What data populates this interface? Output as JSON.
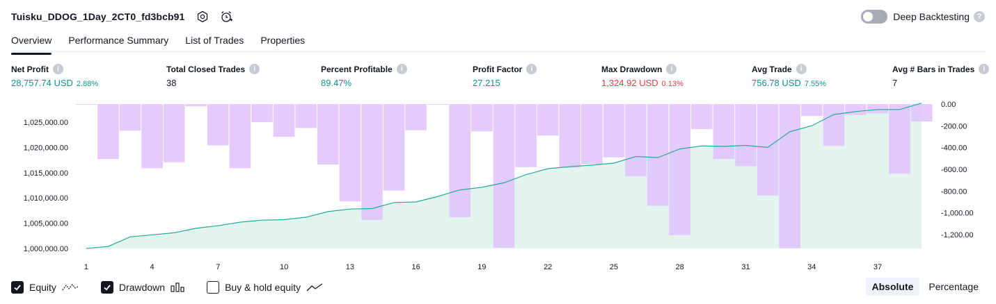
{
  "header": {
    "title": "Tuisku_DDOG_1Day_2CT0_fd3bcb91",
    "settings_icon": "gear-icon",
    "alert_icon": "alarm-clock-plus-icon"
  },
  "deep_backtesting": {
    "label": "Deep Backtesting",
    "enabled": false,
    "help": "?"
  },
  "tabs": [
    {
      "label": "Overview",
      "active": true
    },
    {
      "label": "Performance Summary",
      "active": false
    },
    {
      "label": "List of Trades",
      "active": false
    },
    {
      "label": "Properties",
      "active": false
    }
  ],
  "metrics": {
    "net_profit": {
      "label": "Net Profit",
      "value": "28,757.74 USD",
      "pct": "2.88%"
    },
    "total_closed_trades": {
      "label": "Total Closed Trades",
      "value": "38"
    },
    "percent_profitable": {
      "label": "Percent Profitable",
      "value": "89.47%"
    },
    "profit_factor": {
      "label": "Profit Factor",
      "value": "27.215"
    },
    "max_drawdown": {
      "label": "Max Drawdown",
      "value": "1,324.92 USD",
      "pct": "0.13%"
    },
    "avg_trade": {
      "label": "Avg Trade",
      "value": "756.78 USD",
      "pct": "7.55%"
    },
    "avg_bars": {
      "label": "Avg # Bars in Trades",
      "value": "7"
    },
    "info_glyph": "i"
  },
  "colors": {
    "equity_line": "#22ab94",
    "equity_fill": "#e3f4ef",
    "drawdown_bar": "#e1c2fd",
    "positive": "#089981",
    "negative": "#f23645"
  },
  "chart_data": {
    "type": "area",
    "x": [
      1,
      2,
      3,
      4,
      5,
      6,
      7,
      8,
      9,
      10,
      11,
      12,
      13,
      14,
      15,
      16,
      17,
      18,
      19,
      20,
      21,
      22,
      23,
      24,
      25,
      26,
      27,
      28,
      29,
      30,
      31,
      32,
      33,
      34,
      35,
      36,
      37,
      38,
      39
    ],
    "x_ticks": [
      "1",
      "4",
      "7",
      "10",
      "13",
      "16",
      "19",
      "22",
      "25",
      "28",
      "31",
      "34",
      "37"
    ],
    "series": [
      {
        "axis": "left",
        "values": [
          1000000,
          1000400,
          1002300,
          1002700,
          1003100,
          1004000,
          1004500,
          1005200,
          1005600,
          1005700,
          1006200,
          1007300,
          1007800,
          1007900,
          1009100,
          1009200,
          1010300,
          1011600,
          1012100,
          1013000,
          1014600,
          1015800,
          1016200,
          1016500,
          1016900,
          1018200,
          1018000,
          1019700,
          1020300,
          1020200,
          1020400,
          1020000,
          1023100,
          1024300,
          1026500,
          1027100,
          1027500,
          1027500,
          1028757.74
        ]
      },
      {
        "axis": "right",
        "values": [
          0,
          -505,
          -245,
          -590,
          -535,
          -20,
          -380,
          -590,
          -165,
          -300,
          -220,
          -555,
          -895,
          -1065,
          -795,
          -240,
          0,
          -1040,
          -250,
          -1320,
          -580,
          -290,
          -585,
          -550,
          -490,
          -665,
          -935,
          -1205,
          -230,
          -505,
          -570,
          -840,
          -1325,
          -110,
          -385,
          -100,
          -85,
          -640,
          -160
        ]
      }
    ],
    "left_axis": {
      "ticks": [
        "1,000,000.00",
        "1,005,000.00",
        "1,010,000.00",
        "1,015,000.00",
        "1,020,000.00",
        "1,025,000.00"
      ],
      "min": 1000000,
      "max": 1025000
    },
    "right_axis": {
      "ticks": [
        "0.00",
        "-200.00",
        "-400.00",
        "-600.00",
        "-800.00",
        "-1,000.00",
        "-1,200.00"
      ],
      "min": -1200,
      "max": 0
    }
  },
  "legend": {
    "items": [
      {
        "label": "Equity",
        "checked": true,
        "icon": "equity-line-icon"
      },
      {
        "label": "Drawdown",
        "checked": true,
        "icon": "drawdown-bars-icon"
      },
      {
        "label": "Buy & hold equity",
        "checked": false,
        "icon": "buy-hold-line-icon"
      }
    ]
  },
  "mode": {
    "options": [
      "Absolute",
      "Percentage"
    ],
    "selected": "Absolute"
  }
}
